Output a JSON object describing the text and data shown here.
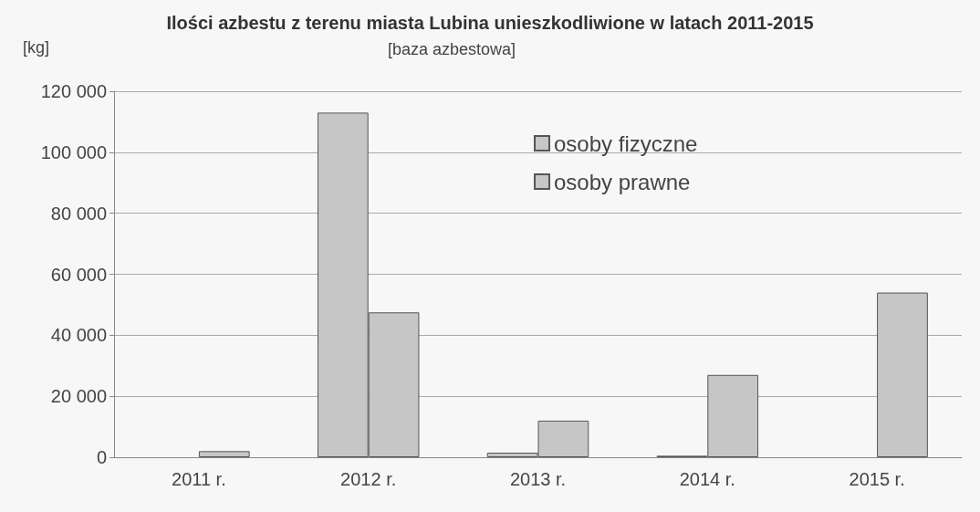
{
  "chart_data": {
    "type": "bar",
    "title": "Ilości azbestu z terenu miasta Lubina unieszkodliwione w latach 2011-2015",
    "subtitle": "[baza azbestowa]",
    "ylabel": "[kg]",
    "categories": [
      "2011 r.",
      "2012 r.",
      "2013 r.",
      "2014 r.",
      "2015 r."
    ],
    "series": [
      {
        "name": "osoby fizyczne",
        "color": "#c6c6c6",
        "values": [
          null,
          113000,
          1500,
          500,
          null
        ]
      },
      {
        "name": "osoby prawne",
        "color": "#c6c6c6",
        "values": [
          2000,
          47500,
          12000,
          27000,
          54000
        ]
      }
    ],
    "ylim": [
      0,
      120000
    ],
    "yticks": [
      {
        "value": 0,
        "label": "0"
      },
      {
        "value": 20000,
        "label": "20 000"
      },
      {
        "value": 40000,
        "label": "40 000"
      },
      {
        "value": 60000,
        "label": "60 000"
      },
      {
        "value": 80000,
        "label": "80 000"
      },
      {
        "value": 100000,
        "label": "100 000"
      },
      {
        "value": 120000,
        "label": "120 000"
      }
    ],
    "grid": "y",
    "legend": "top"
  }
}
